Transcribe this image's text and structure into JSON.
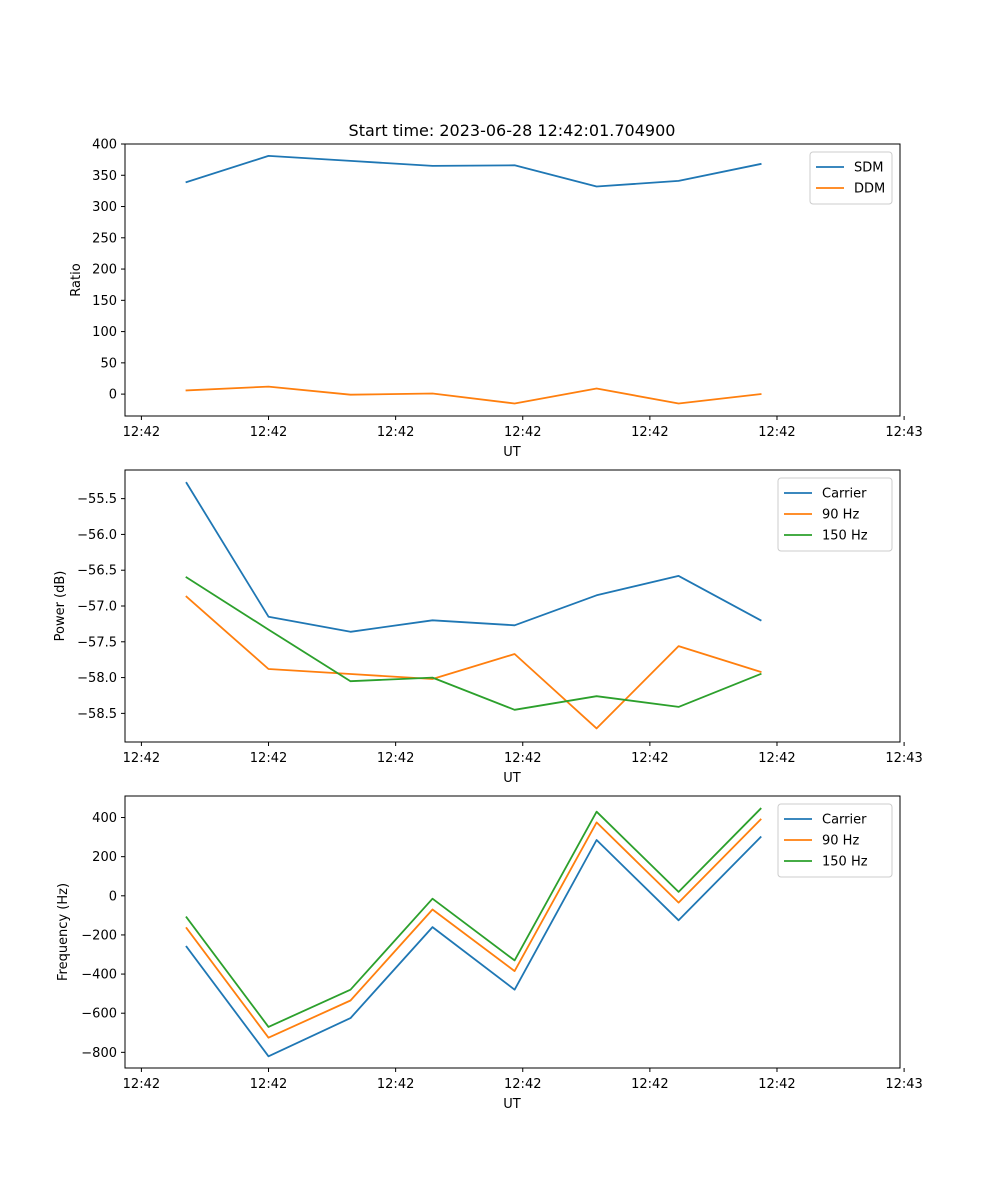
{
  "figure": {
    "title": "Start time: 2023-06-28 12:42:01.704900"
  },
  "colors": {
    "blue": "#1f77b4",
    "orange": "#ff7f0e",
    "green": "#2ca02c"
  },
  "chart_data": [
    {
      "type": "line",
      "title": "Start time: 2023-06-28 12:42:01.704900",
      "xlabel": "UT",
      "ylabel": "Ratio",
      "x": [
        1,
        2,
        3,
        4,
        5,
        6,
        7,
        8
      ],
      "xlim": [
        0.25,
        9.7
      ],
      "xticks": [
        0.45,
        2,
        3.55,
        5.1,
        6.65,
        8.2,
        9.75
      ],
      "xtick_labels": [
        "12:42",
        "12:42",
        "12:42",
        "12:42",
        "12:42",
        "12:42",
        "12:43"
      ],
      "ylim": [
        -35,
        400
      ],
      "yticks": [
        0,
        50,
        100,
        150,
        200,
        250,
        300,
        350,
        400
      ],
      "ytick_labels": [
        "0",
        "50",
        "100",
        "150",
        "200",
        "250",
        "300",
        "350",
        "400"
      ],
      "legend": "top-right",
      "series": [
        {
          "name": "SDM",
          "color": "#1f77b4",
          "values": [
            339,
            381,
            373,
            365,
            366,
            332,
            341,
            368
          ]
        },
        {
          "name": "DDM",
          "color": "#ff7f0e",
          "values": [
            6,
            12,
            -1,
            1,
            -15,
            9,
            -15,
            0
          ]
        }
      ]
    },
    {
      "type": "line",
      "xlabel": "UT",
      "ylabel": "Power (dB)",
      "x": [
        1,
        2,
        3,
        4,
        5,
        6,
        7,
        8
      ],
      "xlim": [
        0.25,
        9.7
      ],
      "xticks": [
        0.45,
        2,
        3.55,
        5.1,
        6.65,
        8.2,
        9.75
      ],
      "xtick_labels": [
        "12:42",
        "12:42",
        "12:42",
        "12:42",
        "12:42",
        "12:42",
        "12:43"
      ],
      "ylim": [
        -58.9,
        -55.1
      ],
      "yticks": [
        -58.5,
        -58.0,
        -57.5,
        -57.0,
        -56.5,
        -56.0,
        -55.5
      ],
      "ytick_labels": [
        "−58.5",
        "−58.0",
        "−57.5",
        "−57.0",
        "−56.5",
        "−56.0",
        "−55.5"
      ],
      "legend": "top-right",
      "series": [
        {
          "name": "Carrier",
          "color": "#1f77b4",
          "values": [
            -55.28,
            -57.15,
            -57.36,
            -57.2,
            -57.27,
            -56.85,
            -56.58,
            -57.2
          ]
        },
        {
          "name": "90 Hz",
          "color": "#ff7f0e",
          "values": [
            -56.87,
            -57.88,
            -57.95,
            -58.02,
            -57.67,
            -58.71,
            -57.56,
            -57.92
          ]
        },
        {
          "name": "150 Hz",
          "color": "#2ca02c",
          "values": [
            -56.6,
            -57.33,
            -58.05,
            -58.0,
            -58.45,
            -58.26,
            -58.41,
            -57.95
          ]
        }
      ]
    },
    {
      "type": "line",
      "xlabel": "UT",
      "ylabel": "Frequency (Hz)",
      "x": [
        1,
        2,
        3,
        4,
        5,
        6,
        7,
        8
      ],
      "xlim": [
        0.25,
        9.7
      ],
      "xticks": [
        0.45,
        2,
        3.55,
        5.1,
        6.65,
        8.2,
        9.75
      ],
      "xtick_labels": [
        "12:42",
        "12:42",
        "12:42",
        "12:42",
        "12:42",
        "12:42",
        "12:43"
      ],
      "ylim": [
        -880,
        510
      ],
      "yticks": [
        -800,
        -600,
        -400,
        -200,
        0,
        200,
        400
      ],
      "ytick_labels": [
        "−800",
        "−600",
        "−400",
        "−200",
        "0",
        "200",
        "400"
      ],
      "legend": "top-right",
      "series": [
        {
          "name": "Carrier",
          "color": "#1f77b4",
          "values": [
            -260,
            -820,
            -625,
            -160,
            -480,
            285,
            -125,
            300
          ]
        },
        {
          "name": "90 Hz",
          "color": "#ff7f0e",
          "values": [
            -165,
            -725,
            -535,
            -70,
            -385,
            375,
            -35,
            390
          ]
        },
        {
          "name": "150 Hz",
          "color": "#2ca02c",
          "values": [
            -110,
            -670,
            -480,
            -15,
            -330,
            430,
            20,
            445
          ]
        }
      ]
    }
  ]
}
